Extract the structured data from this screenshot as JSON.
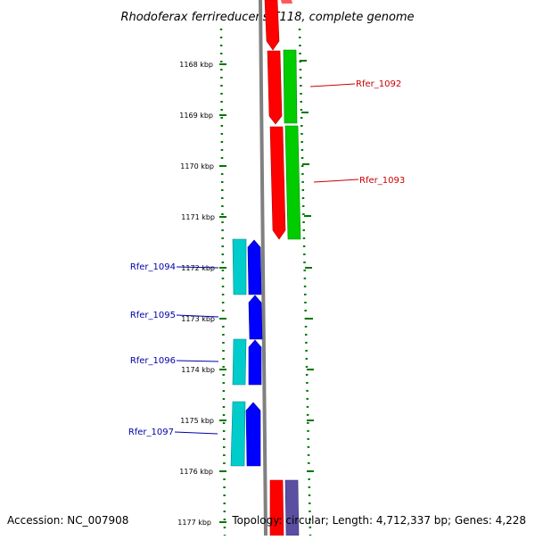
{
  "title": "Rhodoferax ferrireducens T118, complete genome",
  "footer": {
    "accession": "Accession: NC_007908",
    "summary": "Topology: circular; Length: 4,712,337 bp; Genes: 4,228"
  },
  "colors": {
    "forward_cds": "#ff0000",
    "forward_rna": "#00cc00",
    "reverse_cds": "#0000ff",
    "reverse_rna": "#00cccc",
    "other": "#5a4fa0",
    "label_right": "#cc0000",
    "label_left": "#0000aa",
    "ruler": "#007700",
    "backbone": "#808080"
  },
  "ruler": {
    "unit": "kbp",
    "ticks": [
      "1168 kbp",
      "1169 kbp",
      "1170 kbp",
      "1171 kbp",
      "1172 kbp",
      "1173 kbp",
      "1174 kbp",
      "1175 kbp",
      "1176 kbp",
      "1177 kbp"
    ]
  },
  "gene_labels": {
    "right": [
      "Rfer_1092",
      "Rfer_1093"
    ],
    "left": [
      "Rfer_1094",
      "Rfer_1095",
      "Rfer_1096",
      "Rfer_1097"
    ]
  }
}
